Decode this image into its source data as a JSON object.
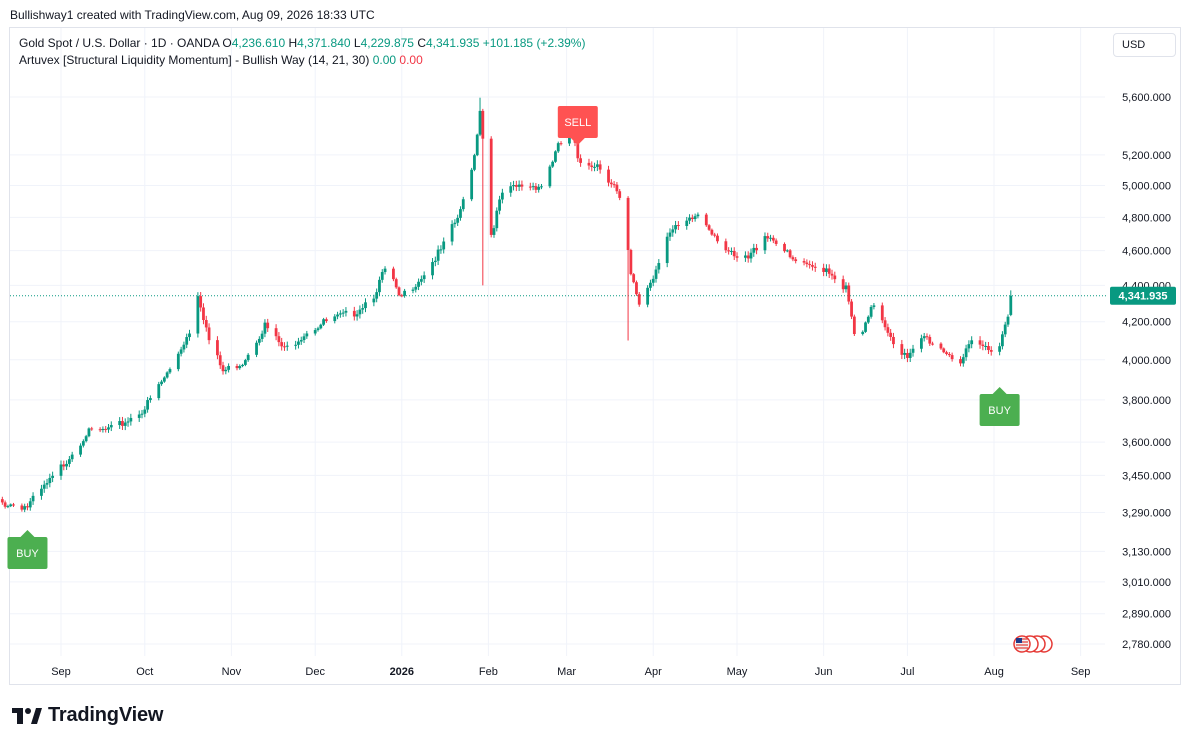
{
  "header": {
    "attribution": "Bullishway1 created with TradingView.com, Aug 09, 2026 18:33 UTC"
  },
  "legend": {
    "symbol": "Gold Spot / U.S. Dollar · 1D · OANDA",
    "open_label": "O",
    "open": "4,236.610",
    "high_label": "H",
    "high": "4,371.840",
    "low_label": "L",
    "low": "4,229.875",
    "close_label": "C",
    "close": "4,341.935",
    "change": "+101.185 (+2.39%)",
    "indicator": "Artuvex [Structural Liquidity Momentum] - Bullish Way (14, 21, 30)",
    "indicator_v1": "0.00",
    "indicator_v2": "0.00"
  },
  "currency_button": "USD",
  "footer": {
    "brand": "TradingView"
  },
  "colors": {
    "up": "#089981",
    "down": "#f23645",
    "buy": "#4caf50",
    "sell": "#ff5252",
    "grid": "#f0f3fa"
  },
  "chart_data": {
    "type": "candlestick",
    "title": "Gold Spot / U.S. Dollar · 1D · OANDA",
    "price_scale": "log",
    "y_ticks": [
      {
        "value": 5600,
        "label": "5,600.000"
      },
      {
        "value": 5200,
        "label": "5,200.000"
      },
      {
        "value": 5000,
        "label": "5,000.000"
      },
      {
        "value": 4800,
        "label": "4,800.000"
      },
      {
        "value": 4600,
        "label": "4,600.000"
      },
      {
        "value": 4400,
        "label": "4,400.000"
      },
      {
        "value": 4200,
        "label": "4,200.000"
      },
      {
        "value": 4000,
        "label": "4,000.000"
      },
      {
        "value": 3800,
        "label": "3,800.000"
      },
      {
        "value": 3600,
        "label": "3,600.000"
      },
      {
        "value": 3450,
        "label": "3,450.000"
      },
      {
        "value": 3290,
        "label": "3,290.000"
      },
      {
        "value": 3130,
        "label": "3,130.000"
      },
      {
        "value": 3010,
        "label": "3,010.000"
      },
      {
        "value": 2890,
        "label": "2,890.000"
      },
      {
        "value": 2780,
        "label": "2,780.000"
      }
    ],
    "x_ticks": [
      "Sep",
      "Oct",
      "Nov",
      "Dec",
      "2026",
      "Feb",
      "Mar",
      "Apr",
      "May",
      "Jun",
      "Jul",
      "Aug",
      "Sep"
    ],
    "last_price": {
      "value": 4341.935,
      "label": "4,341.935"
    },
    "signals": [
      {
        "label": "BUY",
        "type": "buy",
        "date": "2025-08-20"
      },
      {
        "label": "SELL",
        "type": "sell",
        "date": "2026-03-05"
      },
      {
        "label": "BUY",
        "type": "buy",
        "date": "2026-08-03"
      }
    ],
    "close_path": [
      [
        "2025-08-01",
        3345
      ],
      [
        "2025-08-20",
        3315
      ],
      [
        "2025-08-30",
        3450
      ],
      [
        "2025-09-10",
        3640
      ],
      [
        "2025-09-20",
        3660
      ],
      [
        "2025-10-01",
        3760
      ],
      [
        "2025-10-10",
        3950
      ],
      [
        "2025-10-17",
        4150
      ],
      [
        "2025-10-20",
        4360
      ],
      [
        "2025-10-24",
        4100
      ],
      [
        "2025-10-29",
        3940
      ],
      [
        "2025-11-05",
        3990
      ],
      [
        "2025-11-13",
        4180
      ],
      [
        "2025-11-20",
        4050
      ],
      [
        "2025-11-28",
        4150
      ],
      [
        "2025-12-05",
        4200
      ],
      [
        "2025-12-15",
        4250
      ],
      [
        "2025-12-22",
        4350
      ],
      [
        "2025-12-27",
        4520
      ],
      [
        "2025-12-31",
        4320
      ],
      [
        "2026-01-08",
        4450
      ],
      [
        "2026-01-15",
        4600
      ],
      [
        "2026-01-22",
        4830
      ],
      [
        "2026-01-27",
        5200
      ],
      [
        "2026-01-29",
        5520
      ],
      [
        "2026-02-02",
        4700
      ],
      [
        "2026-02-06",
        4950
      ],
      [
        "2026-02-13",
        5000
      ],
      [
        "2026-02-20",
        5000
      ],
      [
        "2026-02-26",
        5250
      ],
      [
        "2026-03-03",
        5380
      ],
      [
        "2026-03-05",
        5150
      ],
      [
        "2026-03-12",
        5140
      ],
      [
        "2026-03-18",
        5000
      ],
      [
        "2026-03-21",
        4850
      ],
      [
        "2026-03-24",
        4450
      ],
      [
        "2026-03-27",
        4300
      ],
      [
        "2026-04-01",
        4450
      ],
      [
        "2026-04-06",
        4700
      ],
      [
        "2026-04-13",
        4760
      ],
      [
        "2026-04-17",
        4820
      ],
      [
        "2026-04-23",
        4700
      ],
      [
        "2026-04-30",
        4550
      ],
      [
        "2026-05-05",
        4550
      ],
      [
        "2026-05-11",
        4700
      ],
      [
        "2026-05-16",
        4650
      ],
      [
        "2026-05-20",
        4550
      ],
      [
        "2026-05-26",
        4500
      ],
      [
        "2026-06-02",
        4500
      ],
      [
        "2026-06-09",
        4380
      ],
      [
        "2026-06-13",
        4050
      ],
      [
        "2026-06-19",
        4300
      ],
      [
        "2026-06-26",
        4100
      ],
      [
        "2026-07-01",
        4000
      ],
      [
        "2026-07-07",
        4120
      ],
      [
        "2026-07-14",
        4050
      ],
      [
        "2026-07-20",
        3990
      ],
      [
        "2026-07-24",
        4080
      ],
      [
        "2026-07-30",
        4060
      ],
      [
        "2026-08-03",
        4080
      ],
      [
        "2026-08-06",
        4240
      ],
      [
        "2026-08-07",
        4341.935
      ]
    ]
  }
}
